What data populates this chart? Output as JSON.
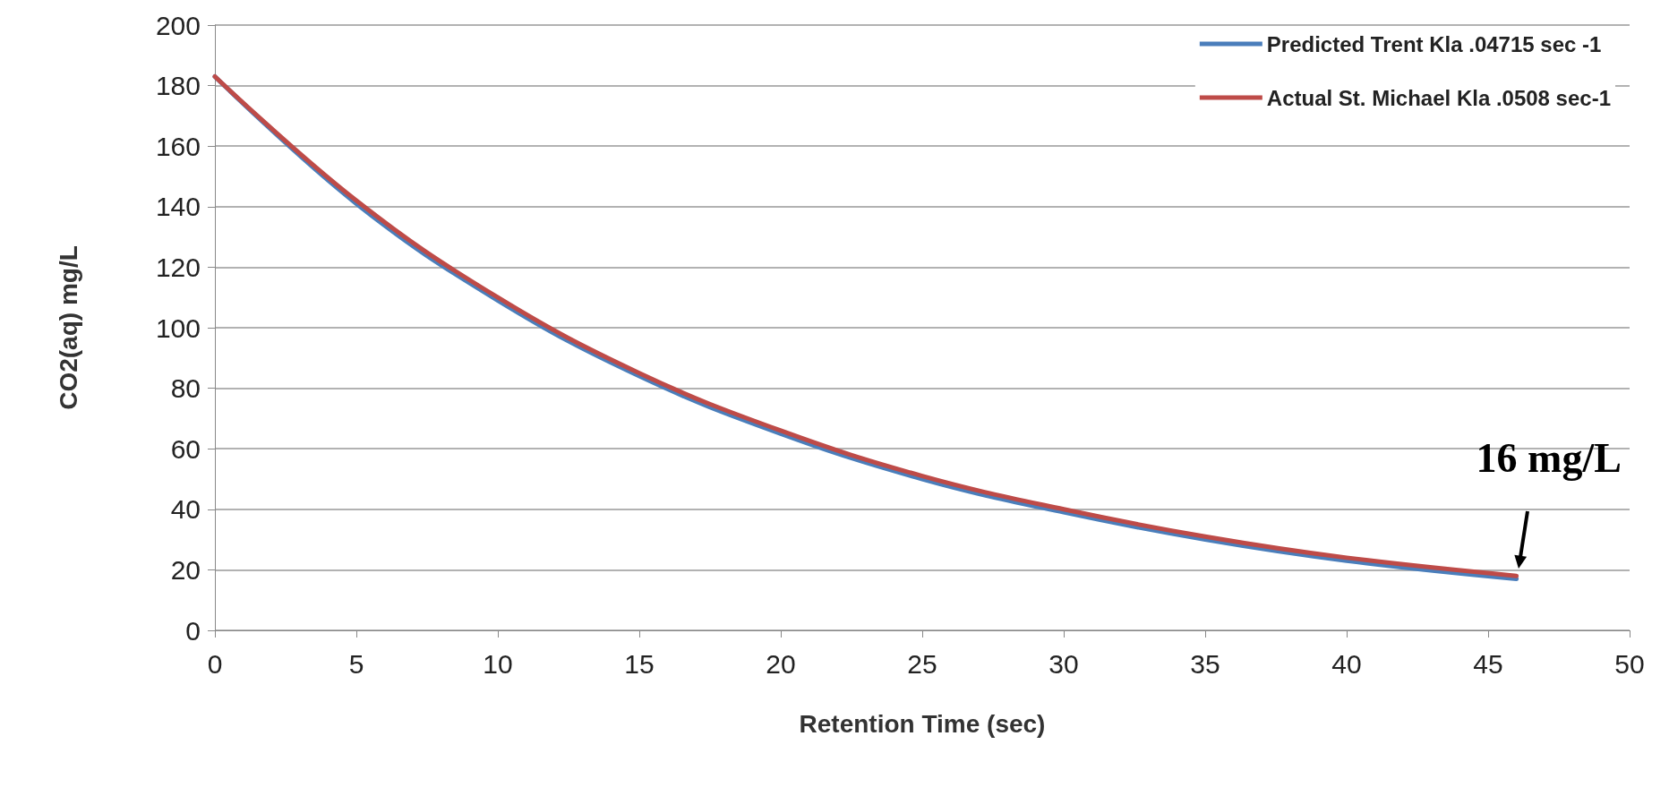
{
  "chart_data": {
    "type": "line",
    "xlabel": "Retention Time (sec)",
    "ylabel": "CO2(aq) mg/L",
    "x": [
      0,
      5,
      10,
      15,
      20,
      25,
      30,
      35,
      40,
      46
    ],
    "series": [
      {
        "name": "Predicted Trent Kla .04715 sec -1",
        "color": "#4a7ebb",
        "values": [
          183,
          141,
          109,
          84,
          65,
          50,
          39,
          30,
          23,
          17
        ]
      },
      {
        "name": "Actual St. Michael Kla .0508 sec-1",
        "color": "#be4b48",
        "values": [
          183,
          142,
          110,
          85,
          66,
          51,
          40,
          31,
          24,
          18
        ]
      }
    ],
    "xlim": [
      0,
      50
    ],
    "xticks": [
      0,
      5,
      10,
      15,
      20,
      25,
      30,
      35,
      40,
      45,
      50
    ],
    "ylim": [
      0,
      200
    ],
    "yticks": [
      0,
      20,
      40,
      60,
      80,
      100,
      120,
      140,
      160,
      180,
      200
    ],
    "grid": "y",
    "legend": "top right",
    "marker": "none",
    "line_style": "solid",
    "annotations": [
      {
        "text": "16 mg/L",
        "x": 46,
        "y": 18
      }
    ]
  }
}
